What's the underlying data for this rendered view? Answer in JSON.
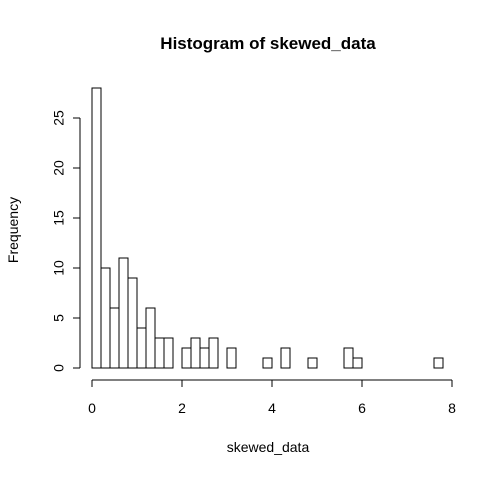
{
  "chart_data": {
    "type": "bar",
    "title": "Histogram of skewed_data",
    "xlabel": "skewed_data",
    "ylabel": "Frequency",
    "bin_width": 0.2,
    "bins": [
      {
        "start": 0.0,
        "end": 0.2,
        "count": 28
      },
      {
        "start": 0.2,
        "end": 0.4,
        "count": 10
      },
      {
        "start": 0.4,
        "end": 0.6,
        "count": 6
      },
      {
        "start": 0.6,
        "end": 0.8,
        "count": 11
      },
      {
        "start": 0.8,
        "end": 1.0,
        "count": 9
      },
      {
        "start": 1.0,
        "end": 1.2,
        "count": 4
      },
      {
        "start": 1.2,
        "end": 1.4,
        "count": 6
      },
      {
        "start": 1.4,
        "end": 1.6,
        "count": 3
      },
      {
        "start": 1.6,
        "end": 1.8,
        "count": 3
      },
      {
        "start": 1.8,
        "end": 2.0,
        "count": 0
      },
      {
        "start": 2.0,
        "end": 2.2,
        "count": 2
      },
      {
        "start": 2.2,
        "end": 2.4,
        "count": 3
      },
      {
        "start": 2.4,
        "end": 2.6,
        "count": 2
      },
      {
        "start": 2.6,
        "end": 2.8,
        "count": 3
      },
      {
        "start": 2.8,
        "end": 3.0,
        "count": 0
      },
      {
        "start": 3.0,
        "end": 3.2,
        "count": 2
      },
      {
        "start": 3.2,
        "end": 3.4,
        "count": 0
      },
      {
        "start": 3.4,
        "end": 3.6,
        "count": 0
      },
      {
        "start": 3.6,
        "end": 3.8,
        "count": 0
      },
      {
        "start": 3.8,
        "end": 4.0,
        "count": 1
      },
      {
        "start": 4.0,
        "end": 4.2,
        "count": 0
      },
      {
        "start": 4.2,
        "end": 4.4,
        "count": 2
      },
      {
        "start": 4.4,
        "end": 4.6,
        "count": 0
      },
      {
        "start": 4.6,
        "end": 4.8,
        "count": 0
      },
      {
        "start": 4.8,
        "end": 5.0,
        "count": 1
      },
      {
        "start": 5.0,
        "end": 5.2,
        "count": 0
      },
      {
        "start": 5.2,
        "end": 5.4,
        "count": 0
      },
      {
        "start": 5.4,
        "end": 5.6,
        "count": 0
      },
      {
        "start": 5.6,
        "end": 5.8,
        "count": 2
      },
      {
        "start": 5.8,
        "end": 6.0,
        "count": 1
      },
      {
        "start": 6.0,
        "end": 6.2,
        "count": 0
      },
      {
        "start": 6.2,
        "end": 6.4,
        "count": 0
      },
      {
        "start": 6.4,
        "end": 6.6,
        "count": 0
      },
      {
        "start": 6.6,
        "end": 6.8,
        "count": 0
      },
      {
        "start": 6.8,
        "end": 7.0,
        "count": 0
      },
      {
        "start": 7.0,
        "end": 7.2,
        "count": 0
      },
      {
        "start": 7.2,
        "end": 7.4,
        "count": 0
      },
      {
        "start": 7.4,
        "end": 7.6,
        "count": 0
      },
      {
        "start": 7.6,
        "end": 7.8,
        "count": 1
      }
    ],
    "xlim": [
      0,
      8
    ],
    "ylim": [
      0,
      28
    ],
    "x_ticks": [
      0,
      2,
      4,
      6,
      8
    ],
    "y_ticks": [
      0,
      5,
      10,
      15,
      20,
      25
    ],
    "grid": false,
    "legend": "none",
    "bar_fill": "#ffffff",
    "bar_stroke": "#000000"
  }
}
